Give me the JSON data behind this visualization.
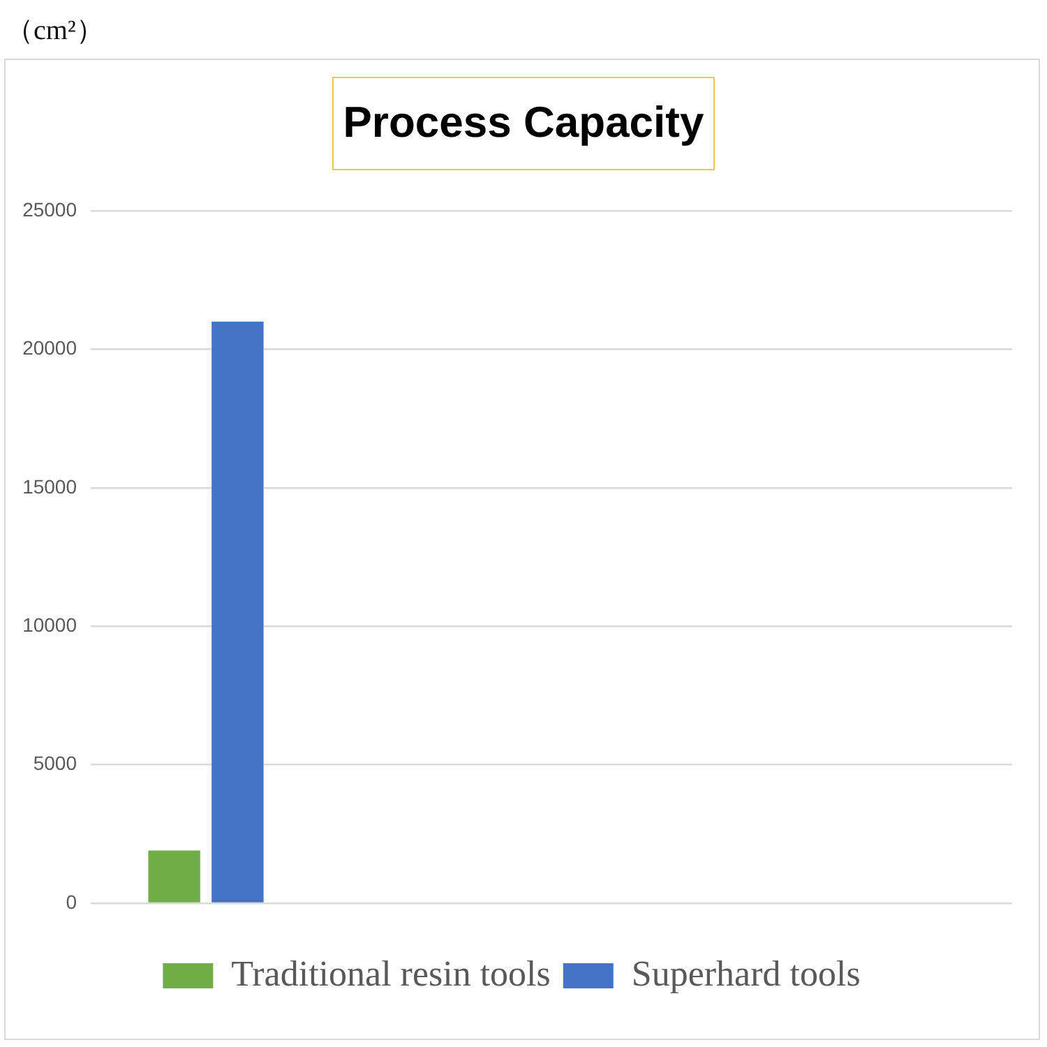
{
  "chart_data": {
    "type": "bar",
    "title": "Process Capacity",
    "annotations": [
      "（cm²）"
    ],
    "categories": [
      null,
      null,
      null,
      null
    ],
    "series": [
      {
        "name": "Traditional resin tools",
        "color": "#70ad47",
        "values": [
          1900,
          null,
          null,
          null
        ]
      },
      {
        "name": "Superhard tools",
        "color": "#4472c4",
        "values": [
          21000,
          null,
          null,
          null
        ]
      }
    ],
    "ylim": [
      0,
      25000
    ],
    "yticks": [
      0,
      5000,
      10000,
      15000,
      20000,
      25000
    ],
    "grid": "y",
    "legend": "bottom"
  }
}
